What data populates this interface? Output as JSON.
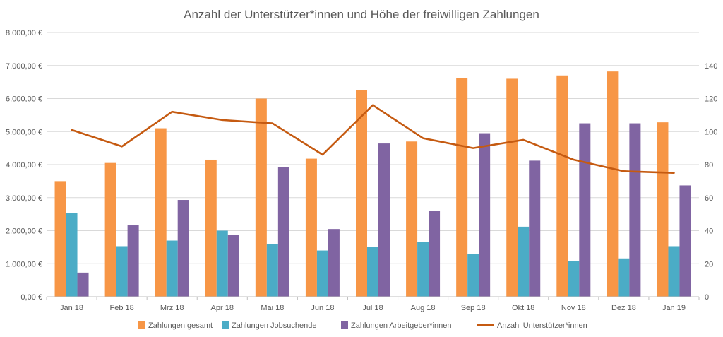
{
  "chart_data": {
    "type": "bar",
    "title": "Anzahl der Unterstützer*innen und Höhe der freiwilligen Zahlungen",
    "categories": [
      "Jan 18",
      "Feb 18",
      "Mrz 18",
      "Apr 18",
      "Mai 18",
      "Jun 18",
      "Jul 18",
      "Aug 18",
      "Sep 18",
      "Okt 18",
      "Nov 18",
      "Dez 18",
      "Jan 19"
    ],
    "y_left": {
      "ylim": [
        0,
        8000
      ],
      "ticks": [
        0,
        1000,
        2000,
        3000,
        4000,
        5000,
        6000,
        7000,
        8000
      ],
      "tick_labels": [
        "0,00 €",
        "1.000,00 €",
        "2.000,00 €",
        "3.000,00 €",
        "4.000,00 €",
        "5.000,00 €",
        "6.000,00 €",
        "7.000,00 €",
        "8.000,00 €"
      ]
    },
    "y_right": {
      "ylim": [
        0,
        160
      ],
      "ticks": [
        0,
        20,
        40,
        60,
        80,
        100,
        120,
        140
      ],
      "tick_labels": [
        "0",
        "20",
        "40",
        "60",
        "80",
        "100",
        "120",
        "140"
      ]
    },
    "series": [
      {
        "name": "Zahlungen gesamt",
        "type": "bar",
        "axis": "left",
        "color": "#F79646",
        "values": [
          3500,
          4050,
          5100,
          4150,
          6000,
          4180,
          6250,
          4700,
          6620,
          6600,
          6700,
          6820,
          5280
        ]
      },
      {
        "name": "Zahlungen Jobsuchende",
        "type": "bar",
        "axis": "left",
        "color": "#4BACC6",
        "values": [
          2530,
          1530,
          1700,
          2000,
          1600,
          1400,
          1500,
          1650,
          1300,
          2120,
          1070,
          1160,
          1530
        ]
      },
      {
        "name": "Zahlungen Arbeitgeber*innen",
        "type": "bar",
        "axis": "left",
        "color": "#8064A2",
        "values": [
          730,
          2160,
          2930,
          1870,
          3930,
          2050,
          4640,
          2590,
          4950,
          4120,
          5250,
          5250,
          3370
        ]
      },
      {
        "name": "Anzahl Unterstützer*innen",
        "type": "line",
        "axis": "right",
        "color": "#C55A11",
        "values": [
          101,
          91,
          112,
          107,
          105,
          86,
          116,
          96,
          90,
          95,
          83,
          76,
          75
        ]
      }
    ],
    "grid": true,
    "legend": "bottom",
    "colors": {
      "grid": "#D9D9D9",
      "axis": "#BFBFBF",
      "text": "#595959"
    }
  }
}
